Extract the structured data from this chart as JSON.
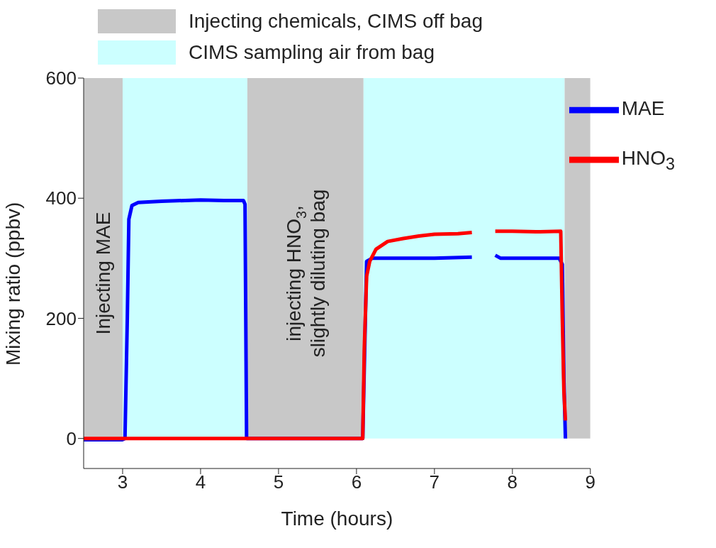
{
  "chart_data": {
    "type": "line",
    "xlabel": "Time (hours)",
    "ylabel": "Mixing ratio (ppbv)",
    "xlim": [
      2.5,
      9
    ],
    "xticks": [
      3,
      4,
      5,
      6,
      7,
      8,
      9
    ],
    "ylim": [
      -50,
      600
    ],
    "yticks": [
      0,
      200,
      400,
      600
    ],
    "grid": false,
    "legend": "top right",
    "marker": "none",
    "line_style": "solid",
    "bands": [
      {
        "axis": "x",
        "from": 2.5,
        "to": 3.0,
        "label": "Injecting chemicals, CIMS off bag",
        "color": "#c8c8c8"
      },
      {
        "axis": "x",
        "from": 3.0,
        "to": 4.6,
        "label": "CIMS sampling air from bag",
        "color": "#ccffff"
      },
      {
        "axis": "x",
        "from": 4.6,
        "to": 6.09,
        "label": null,
        "color": "#c8c8c8"
      },
      {
        "axis": "x",
        "from": 6.09,
        "to": 8.67,
        "label": null,
        "color": "#ccffff"
      },
      {
        "axis": "x",
        "from": 8.67,
        "to": 9,
        "label": null,
        "color": "#c8c8c8"
      }
    ],
    "annotations": [
      "Injecting MAE",
      "injecting HNO$_{3}$,\nslightly diluting bag"
    ],
    "series": [
      {
        "name": "MAE",
        "color": "#0000ff",
        "x": [
          2.5,
          3.0,
          3.03,
          3.06,
          3.08,
          3.12,
          3.2,
          3.5,
          4.0,
          4.3,
          4.55,
          4.57,
          4.59,
          6.08,
          6.13,
          6.2,
          7.0,
          7.48,
          7.63,
          7.78,
          7.85,
          8.6,
          8.64,
          8.66,
          8.68
        ],
        "values": [
          -2,
          -2,
          0,
          200,
          365,
          388,
          393,
          395,
          397,
          396,
          396,
          390,
          0,
          0,
          295,
          300,
          300,
          302,
          null,
          305,
          300,
          300,
          290,
          100,
          0
        ]
      },
      {
        "name": "HNO$_{3}$",
        "color": "#ff0000",
        "x": [
          2.5,
          6.08,
          6.1,
          6.13,
          6.17,
          6.25,
          6.4,
          6.6,
          6.8,
          7.0,
          7.3,
          7.48,
          7.63,
          7.78,
          8.0,
          8.3,
          8.62,
          8.64,
          8.66,
          8.68
        ],
        "values": [
          0,
          0,
          150,
          270,
          295,
          315,
          328,
          333,
          337,
          340,
          341,
          343,
          null,
          345,
          345,
          344,
          345,
          200,
          80,
          30
        ]
      }
    ]
  }
}
